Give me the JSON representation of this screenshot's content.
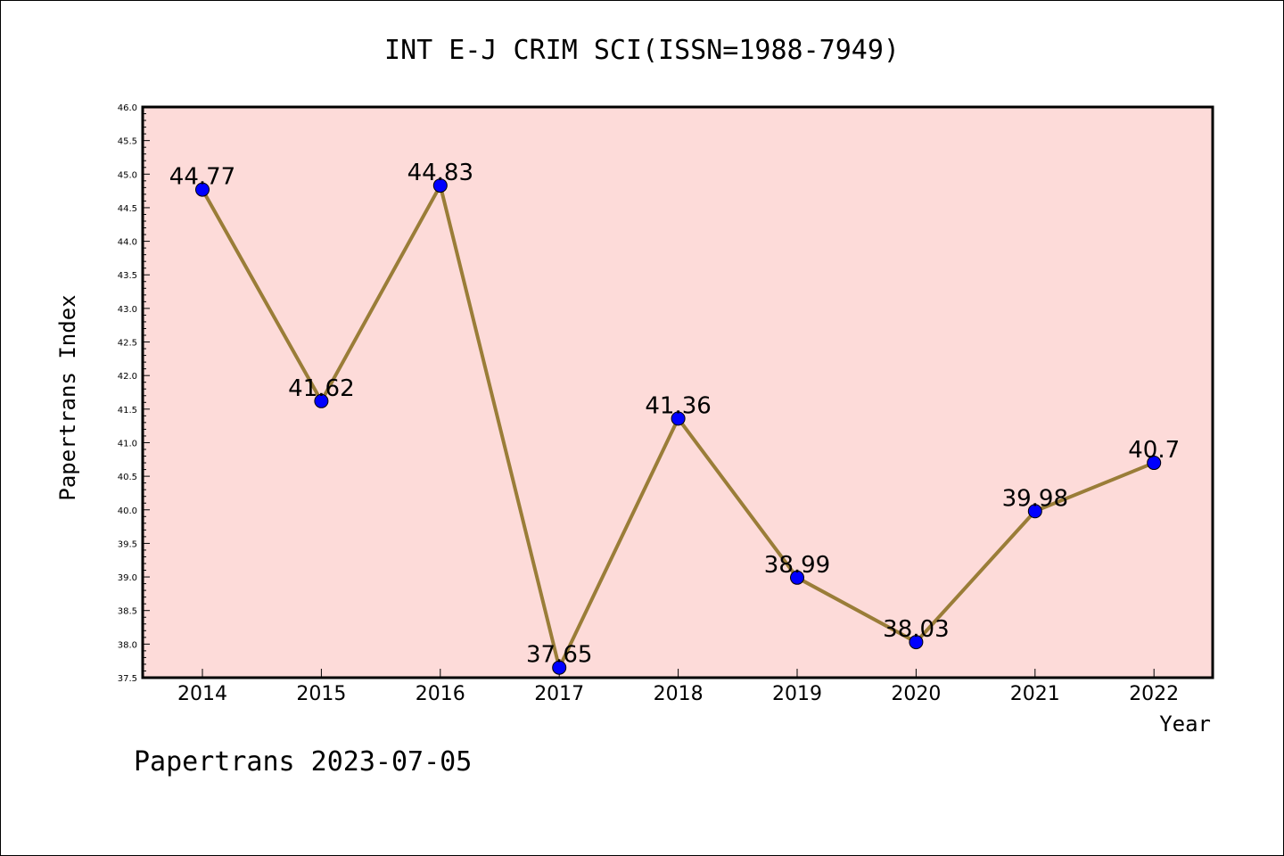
{
  "chart_data": {
    "type": "line",
    "title": "INT E-J CRIM SCI(ISSN=1988-7949)",
    "xlabel": "Year",
    "ylabel": "Papertrans Index",
    "categories": [
      "2014",
      "2015",
      "2016",
      "2017",
      "2018",
      "2019",
      "2020",
      "2021",
      "2022"
    ],
    "series": [
      {
        "values": [
          44.77,
          41.62,
          44.83,
          37.65,
          41.36,
          38.99,
          38.03,
          39.98,
          40.7
        ],
        "labels": [
          "44.77",
          "41.62",
          "44.83",
          "37.65",
          "41.36",
          "38.99",
          "38.03",
          "39.98",
          "40.7"
        ]
      }
    ],
    "ylim": [
      37.5,
      46.0
    ],
    "yticks": [
      "37.5",
      "38.0",
      "38.5",
      "39.0",
      "39.5",
      "40.0",
      "40.5",
      "41.0",
      "41.5",
      "42.0",
      "42.5",
      "43.0",
      "43.5",
      "44.0",
      "44.5",
      "45.0",
      "45.5",
      "46.0"
    ],
    "grid": false,
    "colors": {
      "plot_background": "#fddbd9",
      "line": "#9a7d38",
      "marker": "#0000ff"
    }
  },
  "footer": "Papertrans 2023-07-05"
}
